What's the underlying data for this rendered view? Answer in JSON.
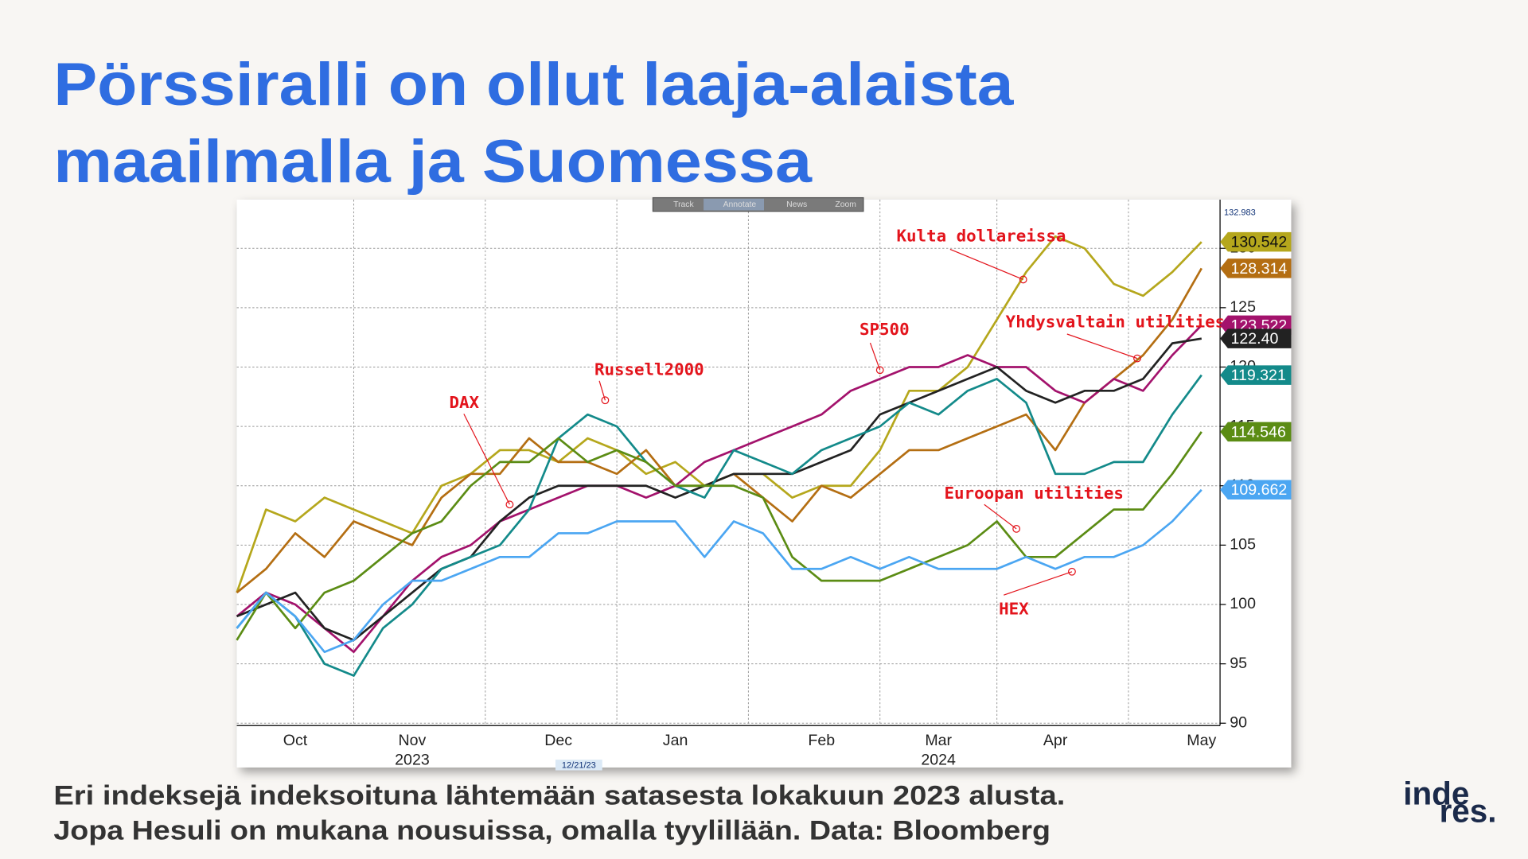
{
  "title_lines": [
    "Pörssiralli on ollut laaja-alaista",
    "maailmalla ja Suomessa"
  ],
  "caption_lines": [
    "Eri indeksejä indeksoituna lähtemään satasesta lokakuun 2023 alusta.",
    "Jopa Hesuli on mukana nousuissa, omalla tyylillään. Data: Bloomberg"
  ],
  "logo": [
    "inde",
    "res."
  ],
  "chart_data": {
    "type": "line",
    "toolbar": [
      "Track",
      "Annotate",
      "News",
      "Zoom"
    ],
    "categories": [
      null,
      null,
      "Oct",
      null,
      null,
      null,
      "Nov",
      null,
      null,
      null,
      null,
      "Dec",
      null,
      null,
      null,
      "Jan",
      null,
      null,
      null,
      null,
      "Feb",
      null,
      null,
      null,
      "Mar",
      null,
      null,
      null,
      "Apr",
      null,
      null,
      null,
      null,
      "May"
    ],
    "category_years": [
      null,
      null,
      null,
      null,
      null,
      null,
      "2023",
      null,
      null,
      null,
      null,
      null,
      null,
      null,
      null,
      null,
      null,
      null,
      null,
      null,
      null,
      null,
      null,
      null,
      "2024",
      null,
      null,
      null,
      null,
      null,
      null,
      null,
      null,
      null
    ],
    "series": [
      {
        "name": "Kulta dollareissa",
        "color": "#b5a71c",
        "label_color": "#111",
        "end_label": "130.542",
        "values": [
          101,
          108,
          107,
          109,
          108,
          107,
          106,
          110,
          111,
          113,
          113,
          112,
          114,
          113,
          111,
          112,
          110,
          111,
          111,
          109,
          110,
          110,
          113,
          118,
          118,
          120,
          124,
          128,
          131,
          130,
          127,
          126,
          128,
          130.542
        ]
      },
      {
        "name": "Yhdysvaltain utilities",
        "color": "#b46e12",
        "label_color": "#fff",
        "end_label": "128.314",
        "values": [
          101,
          103,
          106,
          104,
          107,
          106,
          105,
          109,
          111,
          111,
          114,
          112,
          112,
          111,
          113,
          110,
          110,
          111,
          109,
          107,
          110,
          109,
          111,
          113,
          113,
          114,
          115,
          116,
          113,
          117,
          119,
          121,
          124,
          128.314
        ]
      },
      {
        "name": "SP500",
        "color": "#a3126c",
        "label_color": "#fff",
        "end_label": "123.522",
        "values": [
          99,
          101,
          100,
          98,
          96,
          99,
          102,
          104,
          105,
          107,
          108,
          109,
          110,
          110,
          109,
          110,
          112,
          113,
          114,
          115,
          116,
          118,
          119,
          120,
          120,
          121,
          120,
          120,
          118,
          117,
          119,
          118,
          121,
          123.522
        ]
      },
      {
        "name": "DAX",
        "color": "#222222",
        "label_color": "#fff",
        "end_label": "122.40",
        "values": [
          99,
          100,
          101,
          98,
          97,
          99,
          101,
          103,
          104,
          107,
          109,
          110,
          110,
          110,
          110,
          109,
          110,
          111,
          111,
          111,
          112,
          113,
          116,
          117,
          118,
          119,
          120,
          118,
          117,
          118,
          118,
          119,
          122,
          122.4
        ]
      },
      {
        "name": "Russell2000",
        "color": "#138a8a",
        "label_color": "#fff",
        "end_label": "119.321",
        "values": [
          98,
          101,
          99,
          95,
          94,
          98,
          100,
          103,
          104,
          105,
          108,
          114,
          116,
          115,
          112,
          110,
          109,
          113,
          112,
          111,
          113,
          114,
          115,
          117,
          116,
          118,
          119,
          117,
          111,
          111,
          112,
          112,
          116,
          119.321
        ]
      },
      {
        "name": "Euroopan utilities",
        "color": "#5b8c14",
        "label_color": "#fff",
        "end_label": "114.546",
        "values": [
          97,
          101,
          98,
          101,
          102,
          104,
          106,
          107,
          110,
          112,
          112,
          114,
          112,
          113,
          112,
          110,
          110,
          110,
          109,
          104,
          102,
          102,
          102,
          103,
          104,
          105,
          107,
          104,
          104,
          106,
          108,
          108,
          111,
          114.546
        ]
      },
      {
        "name": "HEX",
        "color": "#4ba6f2",
        "label_color": "#fff",
        "end_label": "109.662",
        "values": [
          98,
          101,
          99,
          96,
          97,
          100,
          102,
          102,
          103,
          104,
          104,
          106,
          106,
          107,
          107,
          107,
          104,
          107,
          106,
          103,
          103,
          104,
          103,
          104,
          103,
          103,
          103,
          104,
          103,
          104,
          104,
          105,
          107,
          109.662
        ]
      }
    ],
    "ylim": [
      89.8,
      134.1
    ],
    "yticks": [
      90,
      95,
      100,
      105,
      110,
      115,
      120,
      125,
      130
    ],
    "grid": true,
    "crosshair_value": 132.983,
    "cursor_date": "12/21/23"
  }
}
